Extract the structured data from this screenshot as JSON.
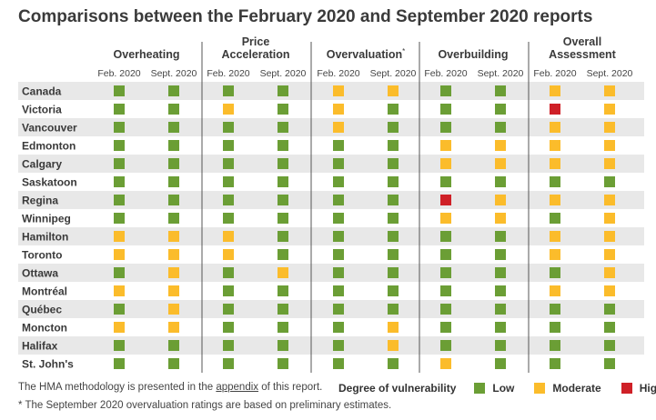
{
  "title": "Comparisons between the February 2020 and September 2020 reports",
  "chart_data": {
    "type": "table",
    "groups": [
      {
        "name": "Overheating",
        "name_lines": [
          "Overheating"
        ],
        "footnote": ""
      },
      {
        "name": "Price Acceleration",
        "name_lines": [
          "Price",
          "Acceleration"
        ],
        "footnote": ""
      },
      {
        "name": "Overvaluation",
        "name_lines": [
          "Overvaluation"
        ],
        "footnote": "*"
      },
      {
        "name": "Overbuilding",
        "name_lines": [
          "Overbuilding"
        ],
        "footnote": ""
      },
      {
        "name": "Overall Assessment",
        "name_lines": [
          "Overall",
          "Assessment"
        ],
        "footnote": ""
      }
    ],
    "periods": [
      "Feb. 2020",
      "Sept. 2020"
    ],
    "rows": [
      {
        "city": "Canada",
        "ratings": [
          "low",
          "low",
          "low",
          "low",
          "moderate",
          "moderate",
          "low",
          "low",
          "moderate",
          "moderate"
        ]
      },
      {
        "city": "Victoria",
        "ratings": [
          "low",
          "low",
          "moderate",
          "low",
          "moderate",
          "low",
          "low",
          "low",
          "high",
          "moderate"
        ]
      },
      {
        "city": "Vancouver",
        "ratings": [
          "low",
          "low",
          "low",
          "low",
          "moderate",
          "low",
          "low",
          "low",
          "moderate",
          "moderate"
        ]
      },
      {
        "city": "Edmonton",
        "ratings": [
          "low",
          "low",
          "low",
          "low",
          "low",
          "low",
          "moderate",
          "moderate",
          "moderate",
          "moderate"
        ]
      },
      {
        "city": "Calgary",
        "ratings": [
          "low",
          "low",
          "low",
          "low",
          "low",
          "low",
          "moderate",
          "moderate",
          "moderate",
          "moderate"
        ]
      },
      {
        "city": "Saskatoon",
        "ratings": [
          "low",
          "low",
          "low",
          "low",
          "low",
          "low",
          "low",
          "low",
          "low",
          "low"
        ]
      },
      {
        "city": "Regina",
        "ratings": [
          "low",
          "low",
          "low",
          "low",
          "low",
          "low",
          "high",
          "moderate",
          "moderate",
          "moderate"
        ]
      },
      {
        "city": "Winnipeg",
        "ratings": [
          "low",
          "low",
          "low",
          "low",
          "low",
          "low",
          "moderate",
          "moderate",
          "low",
          "moderate"
        ]
      },
      {
        "city": "Hamilton",
        "ratings": [
          "moderate",
          "moderate",
          "moderate",
          "low",
          "low",
          "low",
          "low",
          "low",
          "moderate",
          "moderate"
        ]
      },
      {
        "city": "Toronto",
        "ratings": [
          "moderate",
          "moderate",
          "moderate",
          "low",
          "low",
          "low",
          "low",
          "low",
          "moderate",
          "moderate"
        ]
      },
      {
        "city": "Ottawa",
        "ratings": [
          "low",
          "moderate",
          "low",
          "moderate",
          "low",
          "low",
          "low",
          "low",
          "low",
          "moderate"
        ]
      },
      {
        "city": "Montréal",
        "ratings": [
          "moderate",
          "moderate",
          "low",
          "low",
          "low",
          "low",
          "low",
          "low",
          "moderate",
          "moderate"
        ]
      },
      {
        "city": "Québec",
        "ratings": [
          "low",
          "moderate",
          "low",
          "low",
          "low",
          "low",
          "low",
          "low",
          "low",
          "low"
        ]
      },
      {
        "city": "Moncton",
        "ratings": [
          "moderate",
          "moderate",
          "low",
          "low",
          "low",
          "moderate",
          "low",
          "low",
          "low",
          "low"
        ]
      },
      {
        "city": "Halifax",
        "ratings": [
          "low",
          "low",
          "low",
          "low",
          "low",
          "moderate",
          "low",
          "low",
          "low",
          "low"
        ]
      },
      {
        "city": "St. John's",
        "ratings": [
          "low",
          "low",
          "low",
          "low",
          "low",
          "low",
          "moderate",
          "low",
          "low",
          "low"
        ]
      }
    ],
    "legend": {
      "title": "Degree of vulnerability",
      "items": [
        {
          "key": "low",
          "label": "Low",
          "color": "#6b9e35"
        },
        {
          "key": "moderate",
          "label": "Moderate",
          "color": "#fbbc2b"
        },
        {
          "key": "high",
          "label": "High",
          "color": "#cf2027"
        }
      ]
    },
    "row_band_color": "#e8e8e8"
  },
  "footnotes": {
    "line1_before": "The HMA methodology is presented in the ",
    "line1_link": "appendix",
    "line1_after": " of this report.",
    "line2": "* The September 2020 overvaluation ratings are based on preliminary estimates."
  }
}
